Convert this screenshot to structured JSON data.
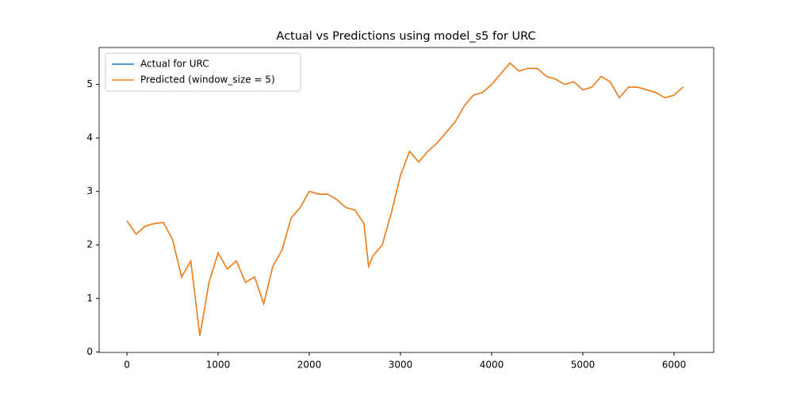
{
  "chart_data": {
    "type": "line",
    "title": "Actual vs Predictions using model_s5 for URC",
    "x": [
      0,
      100,
      200,
      300,
      400,
      500,
      600,
      700,
      800,
      900,
      1000,
      1100,
      1200,
      1300,
      1400,
      1500,
      1600,
      1700,
      1800,
      1900,
      2000,
      2100,
      2200,
      2300,
      2400,
      2500,
      2600,
      2650,
      2700,
      2800,
      2900,
      3000,
      3100,
      3200,
      3300,
      3400,
      3500,
      3600,
      3700,
      3800,
      3900,
      4000,
      4100,
      4200,
      4300,
      4400,
      4500,
      4600,
      4700,
      4800,
      4900,
      5000,
      5100,
      5200,
      5300,
      5400,
      5500,
      5600,
      5700,
      5800,
      5900,
      6000,
      6100
    ],
    "series": [
      {
        "name": "Actual for URC",
        "color": "#1f77b4",
        "values": [
          2.45,
          2.2,
          2.35,
          2.4,
          2.42,
          2.1,
          1.4,
          1.7,
          0.3,
          1.3,
          1.85,
          1.55,
          1.7,
          1.3,
          1.4,
          0.9,
          1.6,
          1.9,
          2.5,
          2.7,
          3.0,
          2.95,
          2.95,
          2.85,
          2.7,
          2.65,
          2.4,
          1.6,
          1.8,
          2.0,
          2.6,
          3.3,
          3.75,
          3.55,
          3.75,
          3.9,
          4.1,
          4.3,
          4.6,
          4.8,
          4.85,
          5.0,
          5.2,
          5.4,
          5.25,
          5.3,
          5.3,
          5.15,
          5.1,
          5.0,
          5.05,
          4.9,
          4.95,
          5.15,
          5.05,
          4.75,
          4.95,
          4.95,
          4.9,
          4.85,
          4.75,
          4.8,
          4.95
        ]
      },
      {
        "name": "Predicted (window_size = 5)",
        "color": "#ff7f0e",
        "values": [
          2.45,
          2.2,
          2.35,
          2.4,
          2.42,
          2.1,
          1.4,
          1.7,
          0.3,
          1.3,
          1.85,
          1.55,
          1.7,
          1.3,
          1.4,
          0.9,
          1.6,
          1.9,
          2.5,
          2.7,
          3.0,
          2.95,
          2.95,
          2.85,
          2.7,
          2.65,
          2.4,
          1.6,
          1.8,
          2.0,
          2.6,
          3.3,
          3.75,
          3.55,
          3.75,
          3.9,
          4.1,
          4.3,
          4.6,
          4.8,
          4.85,
          5.0,
          5.2,
          5.4,
          5.25,
          5.3,
          5.3,
          5.15,
          5.1,
          5.0,
          5.05,
          4.9,
          4.95,
          5.15,
          5.05,
          4.75,
          4.95,
          4.95,
          4.9,
          4.85,
          4.75,
          4.8,
          4.95
        ]
      }
    ],
    "xlim": [
      -305,
      6435
    ],
    "ylim": [
      -0.01,
      5.69
    ],
    "xticks": [
      0,
      1000,
      2000,
      3000,
      4000,
      5000,
      6000
    ],
    "yticks": [
      0,
      1,
      2,
      3,
      4,
      5
    ],
    "legend": "upper left"
  }
}
